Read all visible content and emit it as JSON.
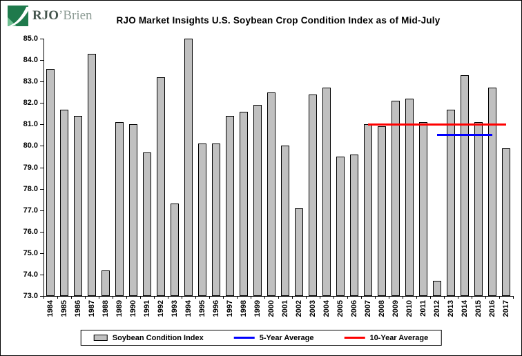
{
  "logo": {
    "primary": "RJO",
    "secondary": "’Brien"
  },
  "chart_data": {
    "type": "bar",
    "title": "RJO Market Insights U.S. Soybean Crop Condition Index as of Mid-July",
    "series_name": "Soybean Condition Index",
    "categories": [
      "1984",
      "1985",
      "1986",
      "1987",
      "1988",
      "1989",
      "1990",
      "1991",
      "1992",
      "1993",
      "1994",
      "1995",
      "1996",
      "1997",
      "1998",
      "1999",
      "2000",
      "2001",
      "2002",
      "2003",
      "2004",
      "2005",
      "2006",
      "2007",
      "2008",
      "2009",
      "2010",
      "2011",
      "2012",
      "2013",
      "2014",
      "2015",
      "2016",
      "2017"
    ],
    "values": [
      83.6,
      81.7,
      81.4,
      84.3,
      74.2,
      81.1,
      81.0,
      79.7,
      83.2,
      77.3,
      85.0,
      80.1,
      80.1,
      81.4,
      81.6,
      81.9,
      82.5,
      80.0,
      77.1,
      82.4,
      82.7,
      79.5,
      79.6,
      81.0,
      80.9,
      82.1,
      82.2,
      81.1,
      73.7,
      81.7,
      83.3,
      81.1,
      82.7,
      79.9
    ],
    "ylim": [
      73.0,
      85.0
    ],
    "yticks": [
      73,
      74,
      75,
      76,
      77,
      78,
      79,
      80,
      81,
      82,
      83,
      84,
      85
    ],
    "ytick_labels": [
      "73.0",
      "74.0",
      "75.0",
      "76.0",
      "77.0",
      "78.0",
      "79.0",
      "80.0",
      "81.0",
      "82.0",
      "83.0",
      "84.0",
      "85.0"
    ],
    "grid": false,
    "bar_color": "#C0C0C0",
    "bar_border_color": "#000000",
    "average_lines": [
      {
        "name": "5-Year Average",
        "value": 80.5,
        "start_year": "2012",
        "end_year": "2016",
        "color": "#0000FF"
      },
      {
        "name": "10-Year Average",
        "value": 81.0,
        "start_year": "2007",
        "end_year": "2017",
        "color": "#FF0000"
      }
    ]
  },
  "legend": {
    "position": "bottom",
    "items": [
      {
        "label": "Soybean Condition Index",
        "swatch": "bar",
        "color": "#C0C0C0"
      },
      {
        "label": "5-Year Average",
        "swatch": "line",
        "color": "#0000FF"
      },
      {
        "label": "10-Year Average",
        "swatch": "line",
        "color": "#FF0000"
      }
    ]
  },
  "colors": {
    "logo_green": "#1F7A4C",
    "logo_green_light": "#6FBF92"
  }
}
